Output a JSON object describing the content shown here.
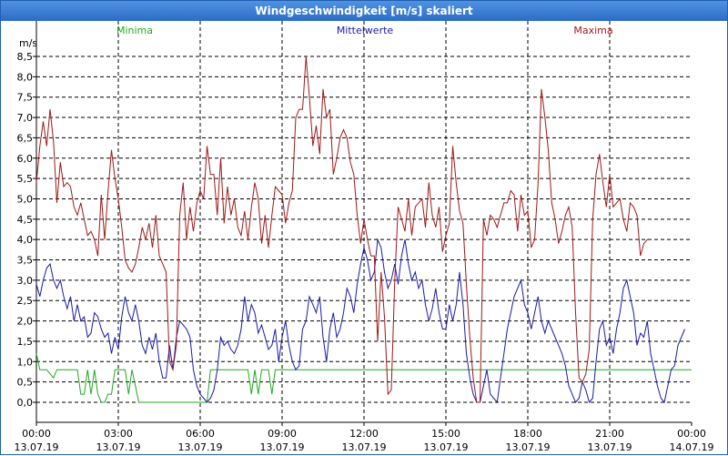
{
  "chart_data": {
    "type": "line",
    "title": "Windgeschwindigkeit [m/s] skaliert",
    "ylabel": "m/s",
    "ylim": [
      0,
      8.5
    ],
    "yticks": [
      "0,0",
      "0,5",
      "1,0",
      "1,5",
      "2,0",
      "2,5",
      "3,0",
      "3,5",
      "4,0",
      "4,5",
      "5,0",
      "5,5",
      "6,0",
      "6,5",
      "7,0",
      "7,5",
      "8,0",
      "8,5"
    ],
    "xlim": [
      0,
      24
    ],
    "xticks": [
      {
        "time": "00:00",
        "date": "13.07.19"
      },
      {
        "time": "03:00",
        "date": "13.07.19"
      },
      {
        "time": "06:00",
        "date": "13.07.19"
      },
      {
        "time": "09:00",
        "date": "13.07.19"
      },
      {
        "time": "12:00",
        "date": "13.07.19"
      },
      {
        "time": "15:00",
        "date": "13.07.19"
      },
      {
        "time": "18:00",
        "date": "13.07.19"
      },
      {
        "time": "21:00",
        "date": "13.07.19"
      },
      {
        "time": "00:00",
        "date": "14.07.19"
      }
    ],
    "x_step_hours": 0.125,
    "series": [
      {
        "name": "Minima",
        "color": "#1fa81f",
        "values": [
          1.2,
          0.8,
          0.8,
          0.8,
          0.7,
          0.6,
          0.8,
          0.8,
          0.8,
          0.8,
          0.8,
          0.8,
          0.8,
          0.2,
          0.2,
          0.8,
          0.2,
          0.8,
          0.2,
          0.0,
          0.0,
          0.2,
          0.2,
          0.8,
          0.8,
          0.8,
          0.8,
          0.2,
          0.8,
          0.4,
          0.0,
          0.0,
          0.0,
          0.0,
          0.0,
          0.0,
          0.0,
          0.0,
          0.0,
          0.0,
          0.0,
          0.0,
          0.0,
          0.0,
          0.0,
          0.0,
          0.0,
          0.0,
          0.0,
          0.0,
          0.0,
          0.8,
          0.8,
          0.8,
          0.8,
          0.8,
          0.8,
          0.8,
          0.8,
          0.8,
          0.8,
          0.8,
          0.8,
          0.2,
          0.8,
          0.2,
          0.8,
          0.8,
          0.8,
          0.2,
          0.8,
          0.8,
          0.8,
          0.8,
          0.8,
          0.8,
          0.8,
          0.8,
          0.8,
          0.8,
          0.8,
          0.8,
          0.8,
          0.8,
          0.8,
          0.8,
          0.8,
          0.8,
          0.8,
          0.8,
          0.8,
          0.8,
          0.8,
          0.8,
          0.8,
          0.8,
          0.8,
          0.8,
          0.8,
          0.8,
          0.8,
          0.8,
          0.8,
          0.8,
          0.8,
          0.8,
          0.8,
          0.8,
          0.8,
          0.8,
          0.8,
          0.8,
          0.8,
          0.8,
          0.8,
          0.8,
          0.8,
          0.8,
          0.8,
          0.8,
          0.8,
          0.8,
          0.8,
          0.8,
          0.8,
          0.8,
          0.8,
          0.8,
          0.8,
          0.8,
          0.8,
          0.8,
          0.8,
          0.8,
          0.8,
          0.8,
          0.8,
          0.8,
          0.8,
          0.8,
          0.8,
          0.8,
          0.8,
          0.8,
          0.8,
          0.8,
          0.8,
          0.8,
          0.8,
          0.8,
          0.8,
          0.8,
          0.8,
          0.8,
          0.8,
          0.8,
          0.8,
          0.8,
          0.8,
          0.8,
          0.8,
          0.8,
          0.8,
          0.8,
          0.8,
          0.8,
          0.8,
          0.8,
          0.8,
          0.8,
          0.8,
          0.8,
          0.8,
          0.8,
          0.8,
          0.8,
          0.8,
          0.8,
          0.8,
          0.8,
          0.8,
          0.8,
          0.8,
          0.8,
          0.8,
          0.8,
          0.8,
          0.8,
          0.8,
          0.8,
          0.8,
          0.8,
          0.8,
          0.8
        ]
      },
      {
        "name": "Mittelwerte",
        "color": "#1a1aa8",
        "values": [
          2.9,
          2.6,
          3.0,
          3.3,
          3.4,
          3.0,
          2.8,
          3.0,
          2.6,
          2.3,
          2.6,
          2.0,
          2.4,
          2.0,
          2.1,
          1.6,
          1.7,
          2.2,
          2.1,
          1.8,
          1.6,
          1.7,
          1.2,
          1.6,
          1.3,
          2.1,
          2.6,
          2.2,
          2.0,
          2.4,
          2.0,
          1.4,
          1.2,
          1.6,
          1.3,
          1.7,
          1.0,
          0.6,
          0.6,
          1.4,
          0.8,
          1.6,
          2.0,
          1.9,
          1.8,
          1.6,
          0.8,
          0.4,
          0.2,
          0.1,
          0.0,
          0.1,
          0.3,
          0.8,
          1.6,
          1.4,
          1.5,
          1.3,
          1.2,
          1.4,
          1.8,
          2.6,
          2.0,
          2.4,
          2.2,
          1.7,
          1.9,
          1.6,
          1.3,
          1.4,
          1.8,
          1.0,
          1.6,
          2.0,
          1.4,
          1.0,
          0.8,
          0.9,
          1.8,
          2.0,
          2.6,
          2.4,
          2.2,
          2.6,
          1.6,
          1.0,
          1.8,
          2.2,
          1.6,
          1.8,
          2.2,
          2.8,
          2.6,
          2.2,
          2.9,
          3.4,
          3.8,
          3.5,
          3.0,
          3.2,
          4.0,
          3.8,
          3.2,
          2.8,
          3.0,
          3.4,
          2.9,
          3.6,
          4.0,
          3.4,
          3.0,
          3.2,
          2.8,
          3.0,
          2.4,
          2.0,
          2.3,
          2.8,
          2.2,
          1.8,
          1.8,
          2.4,
          2.0,
          2.4,
          3.2,
          2.4,
          1.2,
          0.6,
          0.2,
          0.0,
          0.0,
          0.4,
          0.8,
          0.2,
          0.1,
          0.0,
          0.6,
          1.2,
          1.8,
          2.2,
          2.6,
          2.8,
          3.0,
          2.4,
          2.2,
          1.8,
          2.2,
          2.6,
          2.0,
          1.7,
          2.0,
          1.8,
          1.6,
          1.4,
          1.2,
          0.9,
          0.4,
          0.2,
          0.0,
          0.1,
          0.5,
          0.3,
          0.0,
          0.1,
          1.0,
          1.8,
          2.0,
          1.4,
          1.6,
          1.2,
          1.8,
          2.2,
          2.8,
          3.0,
          2.6,
          2.2,
          1.4,
          1.7,
          1.6,
          2.0,
          1.2,
          0.8,
          0.4,
          0.1,
          0.0,
          0.4,
          0.8,
          0.9,
          1.4,
          1.6,
          1.8
        ]
      },
      {
        "name": "Maxima",
        "color": "#a01818",
        "values": [
          5.4,
          6.3,
          6.9,
          6.3,
          7.2,
          6.4,
          4.9,
          5.9,
          5.3,
          5.4,
          5.3,
          4.8,
          4.6,
          4.9,
          4.5,
          4.1,
          4.2,
          4.0,
          3.6,
          5.1,
          4.0,
          5.2,
          6.2,
          5.5,
          5.0,
          4.3,
          3.5,
          3.3,
          3.2,
          3.4,
          3.8,
          4.3,
          4.0,
          4.4,
          3.8,
          4.6,
          3.6,
          3.4,
          3.2,
          1.0,
          0.8,
          1.4,
          4.6,
          5.4,
          4.0,
          4.8,
          4.2,
          4.9,
          5.2,
          5.0,
          6.3,
          5.6,
          5.6,
          4.6,
          6.0,
          4.4,
          5.3,
          4.6,
          5.0,
          4.3,
          4.1,
          4.7,
          4.0,
          4.8,
          5.4,
          5.0,
          3.9,
          4.6,
          3.8,
          4.6,
          5.3,
          5.2,
          5.1,
          4.4,
          4.9,
          5.2,
          7.0,
          7.2,
          7.2,
          8.5,
          7.5,
          6.3,
          6.8,
          6.1,
          7.7,
          7.0,
          7.2,
          5.6,
          6.0,
          6.5,
          6.7,
          6.5,
          5.9,
          5.6,
          4.6,
          3.9,
          4.5,
          4.0,
          3.6,
          3.6,
          1.5,
          3.2,
          2.1,
          0.2,
          0.3,
          3.0,
          4.8,
          4.5,
          4.2,
          5.0,
          4.1,
          4.8,
          4.9,
          5.0,
          4.3,
          5.4,
          4.6,
          4.3,
          4.8,
          3.7,
          4.1,
          4.4,
          6.3,
          5.4,
          4.7,
          4.4,
          2.9,
          1.6,
          0.6,
          0.0,
          0.0,
          4.5,
          4.1,
          4.6,
          4.5,
          4.3,
          4.6,
          4.9,
          4.9,
          5.2,
          5.1,
          4.2,
          5.1,
          4.6,
          4.7,
          3.8,
          4.0,
          5.4,
          7.7,
          7.0,
          6.2,
          4.9,
          4.5,
          3.9,
          4.2,
          4.6,
          4.8,
          4.3,
          2.2,
          0.6,
          0.5,
          0.7,
          1.3,
          4.5,
          5.6,
          6.1,
          5.4,
          4.8,
          5.6,
          4.8,
          4.9,
          5.0,
          4.5,
          4.2,
          4.9,
          4.8,
          4.6,
          3.6,
          3.9,
          4.0,
          4.0
        ]
      }
    ]
  }
}
